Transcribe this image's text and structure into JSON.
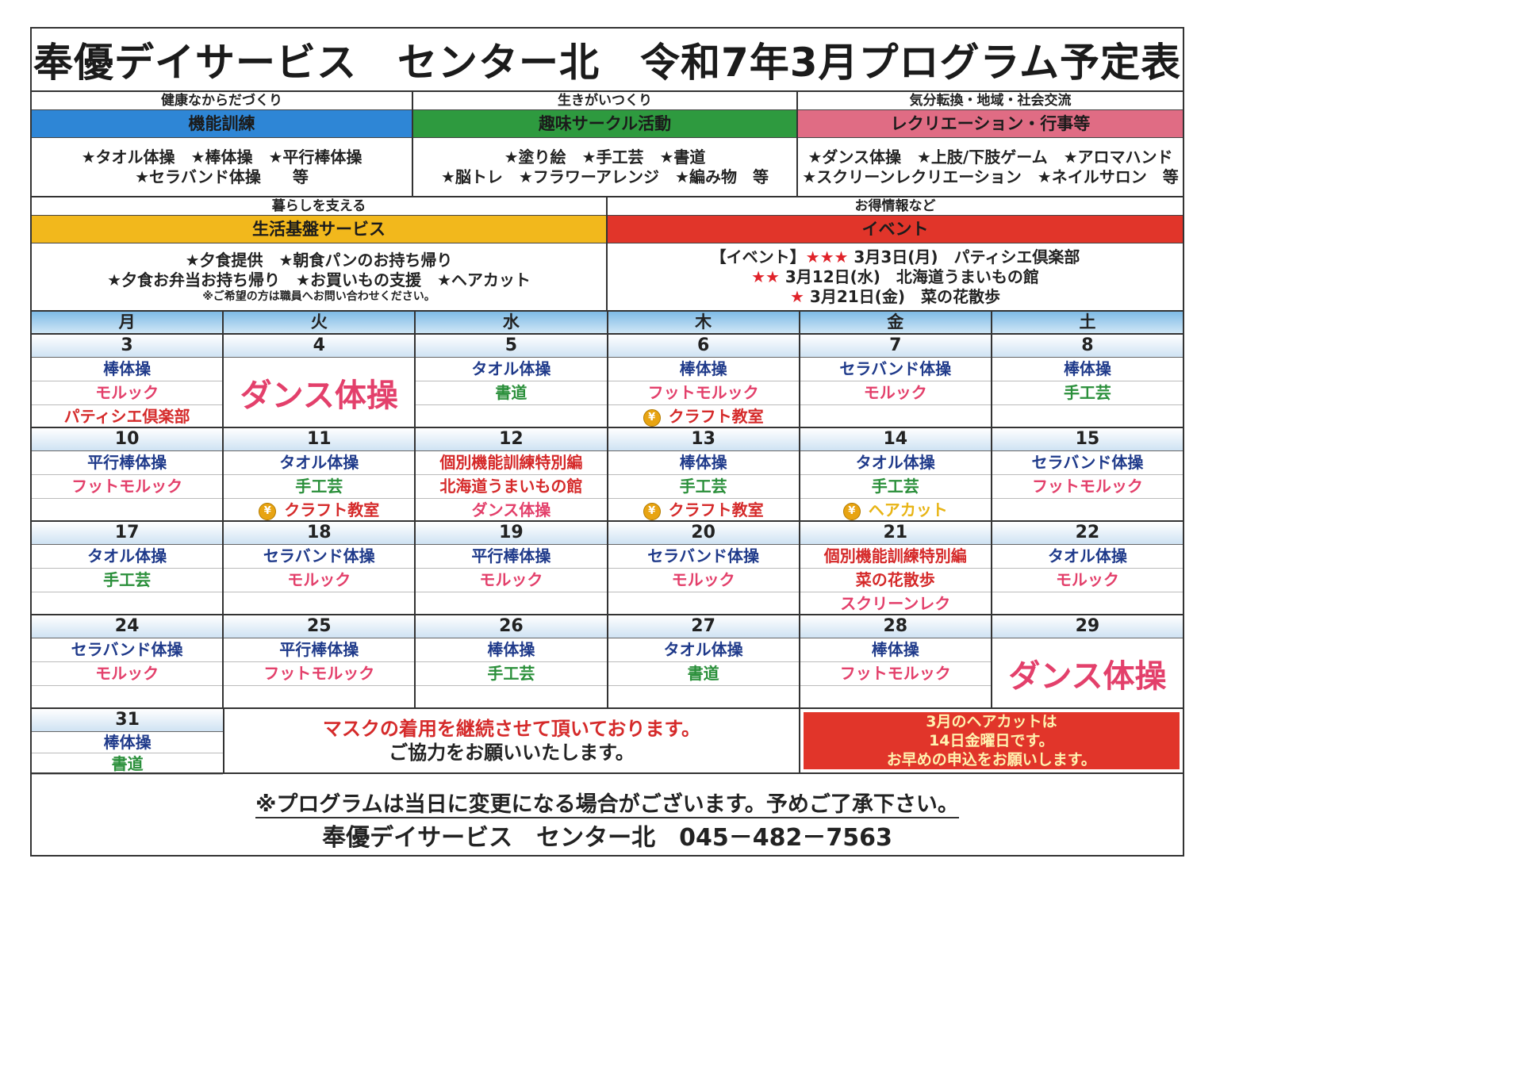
{
  "title": "奉優デイサービス　センター北　令和7年3月プログラム予定表",
  "categories_top": [
    {
      "sub": "健康なからだづくり",
      "band": "機能訓練",
      "lines": [
        "★タオル体操　★棒体操　★平行棒体操",
        "★セラバンド体操　　等"
      ]
    },
    {
      "sub": "生きがいつくり",
      "band": "趣味サークル活動",
      "lines": [
        "★塗り絵　★手工芸　★書道",
        "★脳トレ　★フラワーアレンジ　★編み物　等"
      ]
    },
    {
      "sub": "気分転換・地域・社会交流",
      "band": "レクリエーション・行事等",
      "lines": [
        "★ダンス体操　★上肢/下肢ゲーム　★アロマハンド",
        "★スクリーンレクリエーション　★ネイルサロン　等"
      ]
    }
  ],
  "life": {
    "sub": "暮らしを支える",
    "band": "生活基盤サービス",
    "lines": [
      "★夕食提供　★朝食パンのお持ち帰り",
      "★夕食お弁当お持ち帰り　★お買いもの支援　★ヘアカット"
    ],
    "note": "※ご希望の方は職員へお問い合わせください。"
  },
  "event": {
    "sub": "お得情報など",
    "band": "イベント",
    "items": [
      {
        "prefix": "【イベント】",
        "stars": "★★★",
        "text": " 3月3日(月)　パティシエ倶楽部"
      },
      {
        "prefix": "",
        "stars": "★★",
        "text": " 3月12日(水)　北海道うまいもの館"
      },
      {
        "prefix": "",
        "stars": "★",
        "text": " 3月21日(金)　菜の花散歩"
      }
    ]
  },
  "weekdays": [
    "月",
    "火",
    "水",
    "木",
    "金",
    "土"
  ],
  "weeks": [
    {
      "days": [
        {
          "num": "3",
          "items": [
            [
              "棒体操",
              "blue"
            ],
            [
              "モルック",
              "pink"
            ],
            [
              "パティシエ倶楽部",
              "red"
            ]
          ]
        },
        {
          "num": "4",
          "big": "ダンス体操"
        },
        {
          "num": "5",
          "items": [
            [
              "タオル体操",
              "blue"
            ],
            [
              "書道",
              "green"
            ],
            [
              "",
              ""
            ]
          ]
        },
        {
          "num": "6",
          "items": [
            [
              "棒体操",
              "blue"
            ],
            [
              "フットモルック",
              "pink"
            ],
            [
              "¥クラフト教室",
              "red"
            ]
          ]
        },
        {
          "num": "7",
          "items": [
            [
              "セラバンド体操",
              "blue"
            ],
            [
              "モルック",
              "pink"
            ],
            [
              "",
              ""
            ]
          ]
        },
        {
          "num": "8",
          "items": [
            [
              "棒体操",
              "blue"
            ],
            [
              "手工芸",
              "green"
            ],
            [
              "",
              ""
            ]
          ]
        }
      ]
    },
    {
      "days": [
        {
          "num": "10",
          "items": [
            [
              "平行棒体操",
              "blue"
            ],
            [
              "フットモルック",
              "pink"
            ],
            [
              "",
              ""
            ]
          ]
        },
        {
          "num": "11",
          "items": [
            [
              "タオル体操",
              "blue"
            ],
            [
              "手工芸",
              "green"
            ],
            [
              "¥クラフト教室",
              "red"
            ]
          ]
        },
        {
          "num": "12",
          "items": [
            [
              "個別機能訓練特別編",
              "red"
            ],
            [
              "北海道うまいもの館",
              "red"
            ],
            [
              "ダンス体操",
              "pink"
            ]
          ]
        },
        {
          "num": "13",
          "items": [
            [
              "棒体操",
              "blue"
            ],
            [
              "手工芸",
              "green"
            ],
            [
              "¥クラフト教室",
              "red"
            ]
          ]
        },
        {
          "num": "14",
          "items": [
            [
              "タオル体操",
              "blue"
            ],
            [
              "手工芸",
              "green"
            ],
            [
              "¥ヘアカット",
              "yellow"
            ]
          ]
        },
        {
          "num": "15",
          "items": [
            [
              "セラバンド体操",
              "blue"
            ],
            [
              "フットモルック",
              "pink"
            ],
            [
              "",
              ""
            ]
          ]
        }
      ]
    },
    {
      "days": [
        {
          "num": "17",
          "items": [
            [
              "タオル体操",
              "blue"
            ],
            [
              "手工芸",
              "green"
            ],
            [
              "",
              ""
            ]
          ]
        },
        {
          "num": "18",
          "items": [
            [
              "セラバンド体操",
              "blue"
            ],
            [
              "モルック",
              "pink"
            ],
            [
              "",
              ""
            ]
          ]
        },
        {
          "num": "19",
          "items": [
            [
              "平行棒体操",
              "blue"
            ],
            [
              "モルック",
              "pink"
            ],
            [
              "",
              ""
            ]
          ]
        },
        {
          "num": "20",
          "items": [
            [
              "セラバンド体操",
              "blue"
            ],
            [
              "モルック",
              "pink"
            ],
            [
              "",
              ""
            ]
          ]
        },
        {
          "num": "21",
          "items": [
            [
              "個別機能訓練特別編",
              "red"
            ],
            [
              "菜の花散歩",
              "red"
            ],
            [
              "スクリーンレク",
              "pink"
            ]
          ]
        },
        {
          "num": "22",
          "items": [
            [
              "タオル体操",
              "blue"
            ],
            [
              "モルック",
              "pink"
            ],
            [
              "",
              ""
            ]
          ]
        }
      ]
    },
    {
      "days": [
        {
          "num": "24",
          "items": [
            [
              "セラバンド体操",
              "blue"
            ],
            [
              "モルック",
              "pink"
            ],
            [
              "",
              ""
            ]
          ]
        },
        {
          "num": "25",
          "items": [
            [
              "平行棒体操",
              "blue"
            ],
            [
              "フットモルック",
              "pink"
            ],
            [
              "",
              ""
            ]
          ]
        },
        {
          "num": "26",
          "items": [
            [
              "棒体操",
              "blue"
            ],
            [
              "手工芸",
              "green"
            ],
            [
              "",
              ""
            ]
          ]
        },
        {
          "num": "27",
          "items": [
            [
              "タオル体操",
              "blue"
            ],
            [
              "書道",
              "green"
            ],
            [
              "",
              ""
            ]
          ]
        },
        {
          "num": "28",
          "items": [
            [
              "棒体操",
              "blue"
            ],
            [
              "フットモルック",
              "pink"
            ],
            [
              "",
              ""
            ]
          ]
        },
        {
          "num": "29",
          "big": "ダンス体操"
        }
      ]
    }
  ],
  "last_week": {
    "num": "31",
    "items": [
      [
        "棒体操",
        "blue"
      ],
      [
        "書道",
        "green"
      ],
      [
        "",
        ""
      ]
    ],
    "notice_red_line": "マスクの着用を継続させて頂いております。",
    "notice_black_line": "ご協力をお願いいたします。",
    "haircut_lines": [
      "3月のヘアカットは",
      "14日金曜日です。",
      "お早めの申込をお願いします。"
    ]
  },
  "footer": {
    "note": "※プログラムは当日に変更になる場合がございます。予めご了承下さい。",
    "contact": "奉優デイサービス　センター北　045－482－7563"
  },
  "yen_symbol": "¥"
}
